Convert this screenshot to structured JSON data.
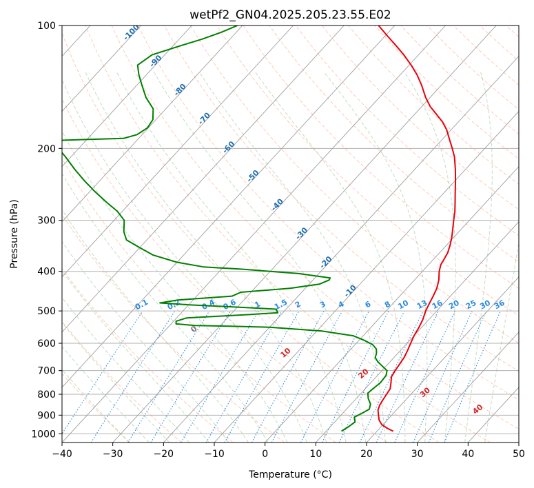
{
  "chart_data": {
    "type": "line",
    "diagram": "skew-T log-P",
    "title": "wetPf2_GN04.2025.205.23.55.E02",
    "xlabel": "Temperature (°C)",
    "ylabel": "Pressure (hPa)",
    "xlim": [
      -40,
      50
    ],
    "ylim": [
      1050,
      100
    ],
    "y_scale": "log",
    "x_ticks": [
      "−40",
      "−30",
      "−20",
      "−10",
      "0",
      "10",
      "20",
      "30",
      "40",
      "50"
    ],
    "x_tick_values": [
      -40,
      -30,
      -20,
      -10,
      0,
      10,
      20,
      30,
      40,
      50
    ],
    "y_ticks": [
      "100",
      "200",
      "300",
      "400",
      "500",
      "600",
      "700",
      "800",
      "900",
      "1000"
    ],
    "y_tick_values": [
      100,
      200,
      300,
      400,
      500,
      600,
      700,
      800,
      900,
      1000
    ],
    "grid": true,
    "isotherm_labels": [
      "-100",
      "-90",
      "-80",
      "-70",
      "-60",
      "-50",
      "-40",
      "-30",
      "-20",
      "-10"
    ],
    "isotherm_label_values": [
      -100,
      -90,
      -80,
      -70,
      -60,
      -50,
      -40,
      -30,
      -20,
      -10
    ],
    "mixing_ratio_labels": [
      "0.1",
      "0.2",
      "0.4",
      "0.6",
      "1",
      "1.5",
      "2",
      "3",
      "4",
      "6",
      "8",
      "10",
      "13",
      "16",
      "20",
      "25",
      "30",
      "36"
    ],
    "mixing_ratio_values": [
      0.1,
      0.2,
      0.4,
      0.6,
      1,
      1.5,
      2,
      3,
      4,
      6,
      8,
      10,
      13,
      16,
      20,
      25,
      30,
      36
    ],
    "moist_adiabat_labels": [
      "0",
      "10",
      "20",
      "30",
      "40"
    ],
    "moist_adiabat_values": [
      0,
      10,
      20,
      30,
      40
    ],
    "series": [
      {
        "color": "#e8000b",
        "points": [
          [
            985,
            23.2
          ],
          [
            970,
            21.6
          ],
          [
            950,
            19.8
          ],
          [
            925,
            18.4
          ],
          [
            900,
            17.4
          ],
          [
            875,
            16.4
          ],
          [
            850,
            15.8
          ],
          [
            825,
            15.5
          ],
          [
            800,
            15.2
          ],
          [
            775,
            14.9
          ],
          [
            750,
            14.0
          ],
          [
            725,
            13.0
          ],
          [
            700,
            12.6
          ],
          [
            675,
            12.3
          ],
          [
            650,
            12.0
          ],
          [
            625,
            11.4
          ],
          [
            600,
            10.7
          ],
          [
            575,
            10.0
          ],
          [
            550,
            9.5
          ],
          [
            525,
            8.8
          ],
          [
            500,
            7.8
          ],
          [
            480,
            7.2
          ],
          [
            460,
            6.6
          ],
          [
            440,
            5.9
          ],
          [
            420,
            4.8
          ],
          [
            400,
            3.3
          ],
          [
            385,
            2.4
          ],
          [
            375,
            2.1
          ],
          [
            360,
            1.6
          ],
          [
            345,
            0.7
          ],
          [
            330,
            -0.4
          ],
          [
            315,
            -1.7
          ],
          [
            300,
            -3.1
          ],
          [
            285,
            -4.5
          ],
          [
            270,
            -6.2
          ],
          [
            255,
            -8.0
          ],
          [
            240,
            -9.9
          ],
          [
            225,
            -12.0
          ],
          [
            210,
            -14.4
          ],
          [
            200,
            -16.4
          ],
          [
            190,
            -18.6
          ],
          [
            180,
            -20.9
          ],
          [
            172,
            -23.2
          ],
          [
            165,
            -25.7
          ],
          [
            158,
            -28.3
          ],
          [
            150,
            -30.9
          ],
          [
            140,
            -33.9
          ],
          [
            132,
            -36.7
          ],
          [
            125,
            -39.6
          ],
          [
            118,
            -42.9
          ],
          [
            112,
            -46.1
          ],
          [
            106,
            -49.6
          ],
          [
            100,
            -53.2
          ]
        ]
      },
      {
        "color": "#007f00",
        "points": [
          [
            985,
            13.0
          ],
          [
            960,
            13.6
          ],
          [
            935,
            14.0
          ],
          [
            910,
            13.0
          ],
          [
            890,
            13.8
          ],
          [
            870,
            14.5
          ],
          [
            845,
            13.8
          ],
          [
            820,
            12.4
          ],
          [
            795,
            11.3
          ],
          [
            770,
            11.6
          ],
          [
            750,
            11.9
          ],
          [
            720,
            11.7
          ],
          [
            700,
            11.0
          ],
          [
            680,
            9.0
          ],
          [
            665,
            7.5
          ],
          [
            650,
            6.3
          ],
          [
            635,
            5.8
          ],
          [
            620,
            5.0
          ],
          [
            605,
            3.5
          ],
          [
            590,
            1.0
          ],
          [
            575,
            -2.0
          ],
          [
            560,
            -9.0
          ],
          [
            548,
            -20.0
          ],
          [
            545,
            -28.0
          ],
          [
            543,
            -35.0
          ],
          [
            538,
            -39.0
          ],
          [
            530,
            -39.5
          ],
          [
            520,
            -38.0
          ],
          [
            515,
            -32.0
          ],
          [
            510,
            -26.0
          ],
          [
            505,
            -21.0
          ],
          [
            495,
            -22.0
          ],
          [
            488,
            -32.0
          ],
          [
            483,
            -40.0
          ],
          [
            478,
            -46.0
          ],
          [
            470,
            -43.0
          ],
          [
            460,
            -33.0
          ],
          [
            450,
            -32.0
          ],
          [
            440,
            -23.0
          ],
          [
            430,
            -18.0
          ],
          [
            420,
            -16.8
          ],
          [
            415,
            -17.0
          ],
          [
            405,
            -24.0
          ],
          [
            395,
            -36.0
          ],
          [
            390,
            -44.0
          ],
          [
            380,
            -50.0
          ],
          [
            365,
            -56.0
          ],
          [
            350,
            -60.0
          ],
          [
            335,
            -64.0
          ],
          [
            320,
            -66.0
          ],
          [
            300,
            -68.0
          ],
          [
            285,
            -71.0
          ],
          [
            270,
            -75.0
          ],
          [
            255,
            -79.0
          ],
          [
            240,
            -83.0
          ],
          [
            225,
            -87.0
          ],
          [
            210,
            -91.0
          ],
          [
            200,
            -94.0
          ],
          [
            193,
            -96.0
          ],
          [
            191,
            -95.0
          ],
          [
            190,
            -89.0
          ],
          [
            189,
            -83.0
          ],
          [
            185,
            -81.0
          ],
          [
            178,
            -80.2
          ],
          [
            170,
            -80.6
          ],
          [
            160,
            -82.5
          ],
          [
            150,
            -86.0
          ],
          [
            140,
            -89.0
          ],
          [
            132,
            -91.5
          ],
          [
            125,
            -93.5
          ],
          [
            118,
            -92.5
          ],
          [
            112,
            -88.5
          ],
          [
            108,
            -85.5
          ],
          [
            104,
            -83.0
          ],
          [
            100,
            -81.0
          ]
        ]
      }
    ]
  }
}
